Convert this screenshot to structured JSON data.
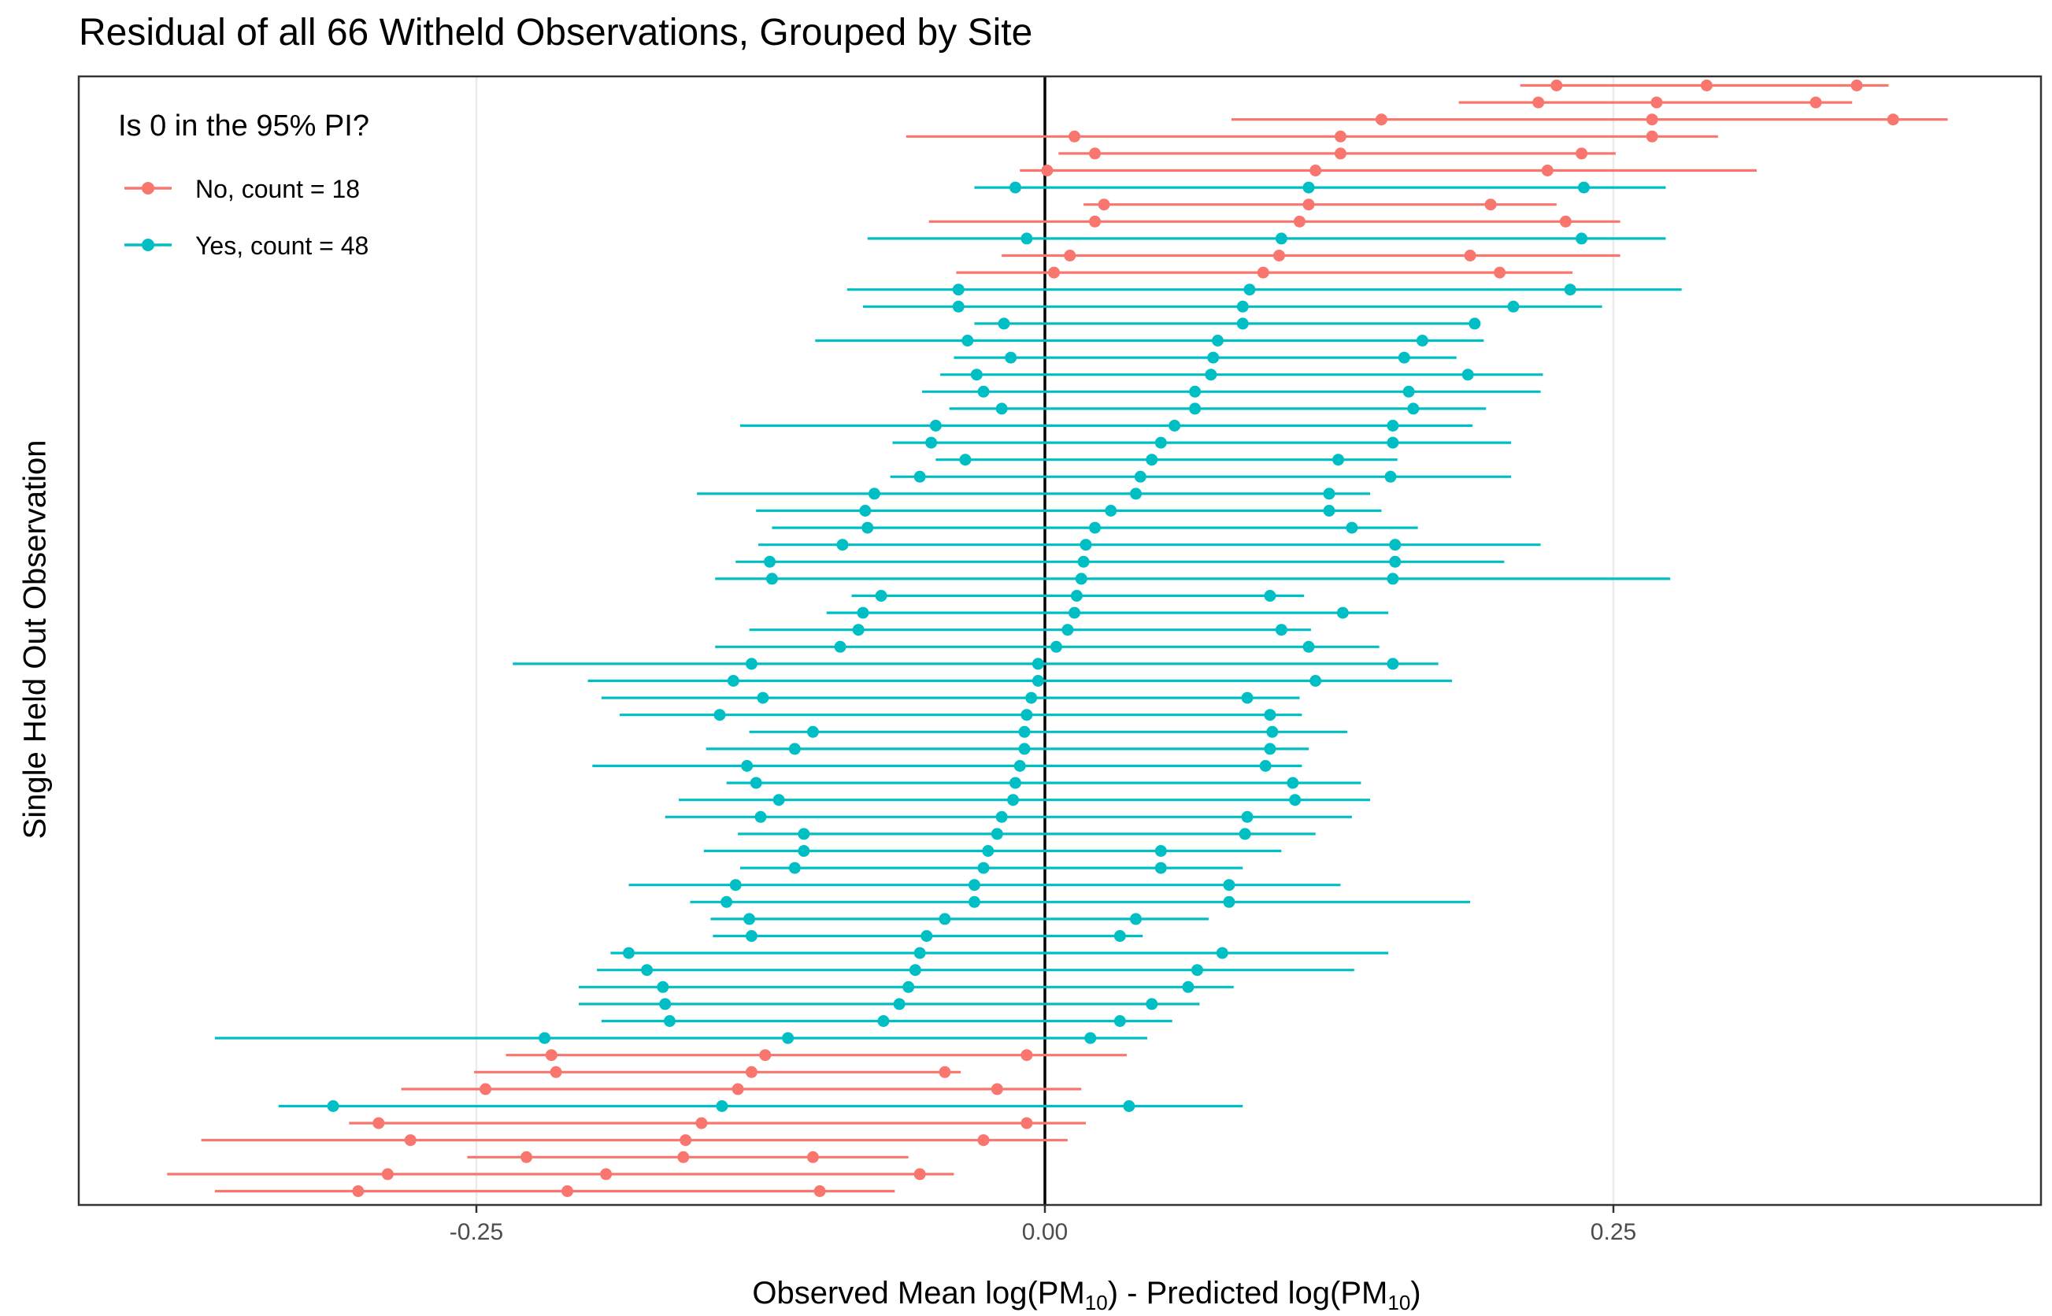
{
  "chart_data": {
    "type": "pointrange",
    "title": "Residual of all 66 Witheld Observations, Grouped by Site",
    "xlabel": {
      "prefix": "Observed Mean log(PM",
      "sub1": "10",
      "middle": ") - Predicted log(PM",
      "sub2": "10",
      "suffix": ")"
    },
    "ylabel": "Single Held Out Observation",
    "xlim": [
      -0.425,
      0.43
    ],
    "ylim": [
      0.5,
      66.5
    ],
    "x_ticks": [
      -0.25,
      0.0,
      0.25
    ],
    "x_tick_labels": [
      "-0.25",
      "0.00",
      "0.25"
    ],
    "zero_line": 0,
    "legend": {
      "title": "Is 0 in the 95% PI?",
      "position": "top-left",
      "entries": [
        {
          "key": "no",
          "label": "No, count = 18",
          "color": "#F8766D"
        },
        {
          "key": "yes",
          "label": "Yes, count = 48",
          "color": "#00BFC4"
        }
      ]
    },
    "colors": {
      "no": "#F8766D",
      "yes": "#00BFC4",
      "zero": "#000000",
      "grid": "#ebebeb",
      "panel_border": "#333333"
    },
    "segments": [
      {
        "row": 66,
        "group": "no",
        "lo": 0.209,
        "hi": 0.371,
        "points": [
          0.225,
          0.291,
          0.357
        ]
      },
      {
        "row": 65,
        "group": "no",
        "lo": 0.182,
        "hi": 0.355,
        "points": [
          0.217,
          0.269,
          0.339
        ]
      },
      {
        "row": 64,
        "group": "no",
        "lo": 0.082,
        "hi": 0.397,
        "points": [
          0.148,
          0.267,
          0.373
        ]
      },
      {
        "row": 63,
        "group": "no",
        "lo": -0.061,
        "hi": 0.296,
        "points": [
          0.013,
          0.13,
          0.267
        ]
      },
      {
        "row": 62,
        "group": "no",
        "lo": 0.006,
        "hi": 0.251,
        "points": [
          0.022,
          0.13,
          0.236
        ]
      },
      {
        "row": 61,
        "group": "no",
        "lo": -0.011,
        "hi": 0.313,
        "points": [
          0.001,
          0.119,
          0.221
        ]
      },
      {
        "row": 60,
        "group": "yes",
        "lo": -0.031,
        "hi": 0.273,
        "points": [
          -0.013,
          0.116,
          0.237
        ]
      },
      {
        "row": 59,
        "group": "no",
        "lo": 0.017,
        "hi": 0.225,
        "points": [
          0.026,
          0.116,
          0.196
        ]
      },
      {
        "row": 58,
        "group": "no",
        "lo": -0.051,
        "hi": 0.253,
        "points": [
          0.022,
          0.112,
          0.229
        ]
      },
      {
        "row": 57,
        "group": "yes",
        "lo": -0.078,
        "hi": 0.273,
        "points": [
          -0.008,
          0.104,
          0.236
        ]
      },
      {
        "row": 56,
        "group": "no",
        "lo": -0.019,
        "hi": 0.253,
        "points": [
          0.011,
          0.103,
          0.187
        ]
      },
      {
        "row": 55,
        "group": "no",
        "lo": -0.039,
        "hi": 0.232,
        "points": [
          0.004,
          0.096,
          0.2
        ]
      },
      {
        "row": 54,
        "group": "yes",
        "lo": -0.087,
        "hi": 0.28,
        "points": [
          -0.038,
          0.09,
          0.231
        ]
      },
      {
        "row": 53,
        "group": "yes",
        "lo": -0.08,
        "hi": 0.245,
        "points": [
          -0.038,
          0.087,
          0.206
        ]
      },
      {
        "row": 52,
        "group": "yes",
        "lo": -0.031,
        "hi": 0.191,
        "points": [
          -0.018,
          0.087,
          0.189
        ]
      },
      {
        "row": 51,
        "group": "yes",
        "lo": -0.101,
        "hi": 0.193,
        "points": [
          -0.034,
          0.076,
          0.166
        ]
      },
      {
        "row": 50,
        "group": "yes",
        "lo": -0.04,
        "hi": 0.181,
        "points": [
          -0.015,
          0.074,
          0.158
        ]
      },
      {
        "row": 49,
        "group": "yes",
        "lo": -0.046,
        "hi": 0.219,
        "points": [
          -0.03,
          0.073,
          0.186
        ]
      },
      {
        "row": 48,
        "group": "yes",
        "lo": -0.054,
        "hi": 0.218,
        "points": [
          -0.027,
          0.066,
          0.16
        ]
      },
      {
        "row": 47,
        "group": "yes",
        "lo": -0.042,
        "hi": 0.194,
        "points": [
          -0.019,
          0.066,
          0.162
        ]
      },
      {
        "row": 46,
        "group": "yes",
        "lo": -0.134,
        "hi": 0.188,
        "points": [
          -0.048,
          0.057,
          0.153
        ]
      },
      {
        "row": 45,
        "group": "yes",
        "lo": -0.067,
        "hi": 0.205,
        "points": [
          -0.05,
          0.051,
          0.153
        ]
      },
      {
        "row": 44,
        "group": "yes",
        "lo": -0.048,
        "hi": 0.155,
        "points": [
          -0.035,
          0.047,
          0.129
        ]
      },
      {
        "row": 43,
        "group": "yes",
        "lo": -0.068,
        "hi": 0.205,
        "points": [
          -0.055,
          0.042,
          0.152
        ]
      },
      {
        "row": 42,
        "group": "yes",
        "lo": -0.153,
        "hi": 0.143,
        "points": [
          -0.075,
          0.04,
          0.125
        ]
      },
      {
        "row": 41,
        "group": "yes",
        "lo": -0.127,
        "hi": 0.148,
        "points": [
          -0.079,
          0.029,
          0.125
        ]
      },
      {
        "row": 40,
        "group": "yes",
        "lo": -0.12,
        "hi": 0.164,
        "points": [
          -0.078,
          0.022,
          0.135
        ]
      },
      {
        "row": 39,
        "group": "yes",
        "lo": -0.126,
        "hi": 0.218,
        "points": [
          -0.089,
          0.018,
          0.154
        ]
      },
      {
        "row": 38,
        "group": "yes",
        "lo": -0.136,
        "hi": 0.202,
        "points": [
          -0.121,
          0.017,
          0.154
        ]
      },
      {
        "row": 37,
        "group": "yes",
        "lo": -0.145,
        "hi": 0.275,
        "points": [
          -0.12,
          0.016,
          0.153
        ]
      },
      {
        "row": 36,
        "group": "yes",
        "lo": -0.085,
        "hi": 0.114,
        "points": [
          -0.072,
          0.014,
          0.099
        ]
      },
      {
        "row": 35,
        "group": "yes",
        "lo": -0.096,
        "hi": 0.151,
        "points": [
          -0.08,
          0.013,
          0.131
        ]
      },
      {
        "row": 34,
        "group": "yes",
        "lo": -0.13,
        "hi": 0.117,
        "points": [
          -0.082,
          0.01,
          0.104
        ]
      },
      {
        "row": 33,
        "group": "yes",
        "lo": -0.145,
        "hi": 0.147,
        "points": [
          -0.09,
          0.005,
          0.116
        ]
      },
      {
        "row": 32,
        "group": "yes",
        "lo": -0.234,
        "hi": 0.173,
        "points": [
          -0.129,
          -0.003,
          0.153
        ]
      },
      {
        "row": 31,
        "group": "yes",
        "lo": -0.201,
        "hi": 0.179,
        "points": [
          -0.137,
          -0.003,
          0.119
        ]
      },
      {
        "row": 30,
        "group": "yes",
        "lo": -0.195,
        "hi": 0.112,
        "points": [
          -0.124,
          -0.006,
          0.089
        ]
      },
      {
        "row": 29,
        "group": "yes",
        "lo": -0.187,
        "hi": 0.113,
        "points": [
          -0.143,
          -0.008,
          0.099
        ]
      },
      {
        "row": 28,
        "group": "yes",
        "lo": -0.13,
        "hi": 0.133,
        "points": [
          -0.102,
          -0.009,
          0.1
        ]
      },
      {
        "row": 27,
        "group": "yes",
        "lo": -0.149,
        "hi": 0.116,
        "points": [
          -0.11,
          -0.009,
          0.099
        ]
      },
      {
        "row": 26,
        "group": "yes",
        "lo": -0.199,
        "hi": 0.113,
        "points": [
          -0.131,
          -0.011,
          0.097
        ]
      },
      {
        "row": 25,
        "group": "yes",
        "lo": -0.14,
        "hi": 0.139,
        "points": [
          -0.127,
          -0.013,
          0.109
        ]
      },
      {
        "row": 24,
        "group": "yes",
        "lo": -0.161,
        "hi": 0.143,
        "points": [
          -0.117,
          -0.014,
          0.11
        ]
      },
      {
        "row": 23,
        "group": "yes",
        "lo": -0.167,
        "hi": 0.135,
        "points": [
          -0.125,
          -0.019,
          0.089
        ]
      },
      {
        "row": 22,
        "group": "yes",
        "lo": -0.135,
        "hi": 0.119,
        "points": [
          -0.106,
          -0.021,
          0.088
        ]
      },
      {
        "row": 21,
        "group": "yes",
        "lo": -0.15,
        "hi": 0.104,
        "points": [
          -0.106,
          -0.025,
          0.051
        ]
      },
      {
        "row": 20,
        "group": "yes",
        "lo": -0.134,
        "hi": 0.087,
        "points": [
          -0.11,
          -0.027,
          0.051
        ]
      },
      {
        "row": 19,
        "group": "yes",
        "lo": -0.183,
        "hi": 0.13,
        "points": [
          -0.136,
          -0.031,
          0.081
        ]
      },
      {
        "row": 18,
        "group": "yes",
        "lo": -0.156,
        "hi": 0.187,
        "points": [
          -0.14,
          -0.031,
          0.081
        ]
      },
      {
        "row": 17,
        "group": "yes",
        "lo": -0.147,
        "hi": 0.072,
        "points": [
          -0.13,
          -0.044,
          0.04
        ]
      },
      {
        "row": 16,
        "group": "yes",
        "lo": -0.146,
        "hi": 0.043,
        "points": [
          -0.129,
          -0.052,
          0.033
        ]
      },
      {
        "row": 15,
        "group": "yes",
        "lo": -0.191,
        "hi": 0.151,
        "points": [
          -0.183,
          -0.055,
          0.078
        ]
      },
      {
        "row": 14,
        "group": "yes",
        "lo": -0.197,
        "hi": 0.136,
        "points": [
          -0.175,
          -0.057,
          0.067
        ]
      },
      {
        "row": 13,
        "group": "yes",
        "lo": -0.205,
        "hi": 0.083,
        "points": [
          -0.168,
          -0.06,
          0.063
        ]
      },
      {
        "row": 12,
        "group": "yes",
        "lo": -0.205,
        "hi": 0.068,
        "points": [
          -0.167,
          -0.064,
          0.047
        ]
      },
      {
        "row": 11,
        "group": "yes",
        "lo": -0.195,
        "hi": 0.056,
        "points": [
          -0.165,
          -0.071,
          0.033
        ]
      },
      {
        "row": 10,
        "group": "yes",
        "lo": -0.365,
        "hi": 0.045,
        "points": [
          -0.22,
          -0.113,
          0.02
        ]
      },
      {
        "row": 9,
        "group": "no",
        "lo": -0.237,
        "hi": 0.036,
        "points": [
          -0.217,
          -0.123,
          -0.008
        ]
      },
      {
        "row": 8,
        "group": "no",
        "lo": -0.251,
        "hi": -0.037,
        "points": [
          -0.215,
          -0.129,
          -0.044
        ]
      },
      {
        "row": 7,
        "group": "no",
        "lo": -0.283,
        "hi": 0.016,
        "points": [
          -0.246,
          -0.135,
          -0.021
        ]
      },
      {
        "row": 6,
        "group": "yes",
        "lo": -0.337,
        "hi": 0.087,
        "points": [
          -0.313,
          -0.142,
          0.037
        ]
      },
      {
        "row": 5,
        "group": "no",
        "lo": -0.306,
        "hi": 0.018,
        "points": [
          -0.293,
          -0.151,
          -0.008
        ]
      },
      {
        "row": 4,
        "group": "no",
        "lo": -0.371,
        "hi": 0.01,
        "points": [
          -0.279,
          -0.158,
          -0.027
        ]
      },
      {
        "row": 3,
        "group": "no",
        "lo": -0.254,
        "hi": -0.06,
        "points": [
          -0.228,
          -0.159,
          -0.102
        ]
      },
      {
        "row": 2,
        "group": "no",
        "lo": -0.386,
        "hi": -0.04,
        "points": [
          -0.289,
          -0.193,
          -0.055
        ]
      },
      {
        "row": 1,
        "group": "no",
        "lo": -0.365,
        "hi": -0.066,
        "points": [
          -0.302,
          -0.21,
          -0.099
        ]
      }
    ]
  }
}
